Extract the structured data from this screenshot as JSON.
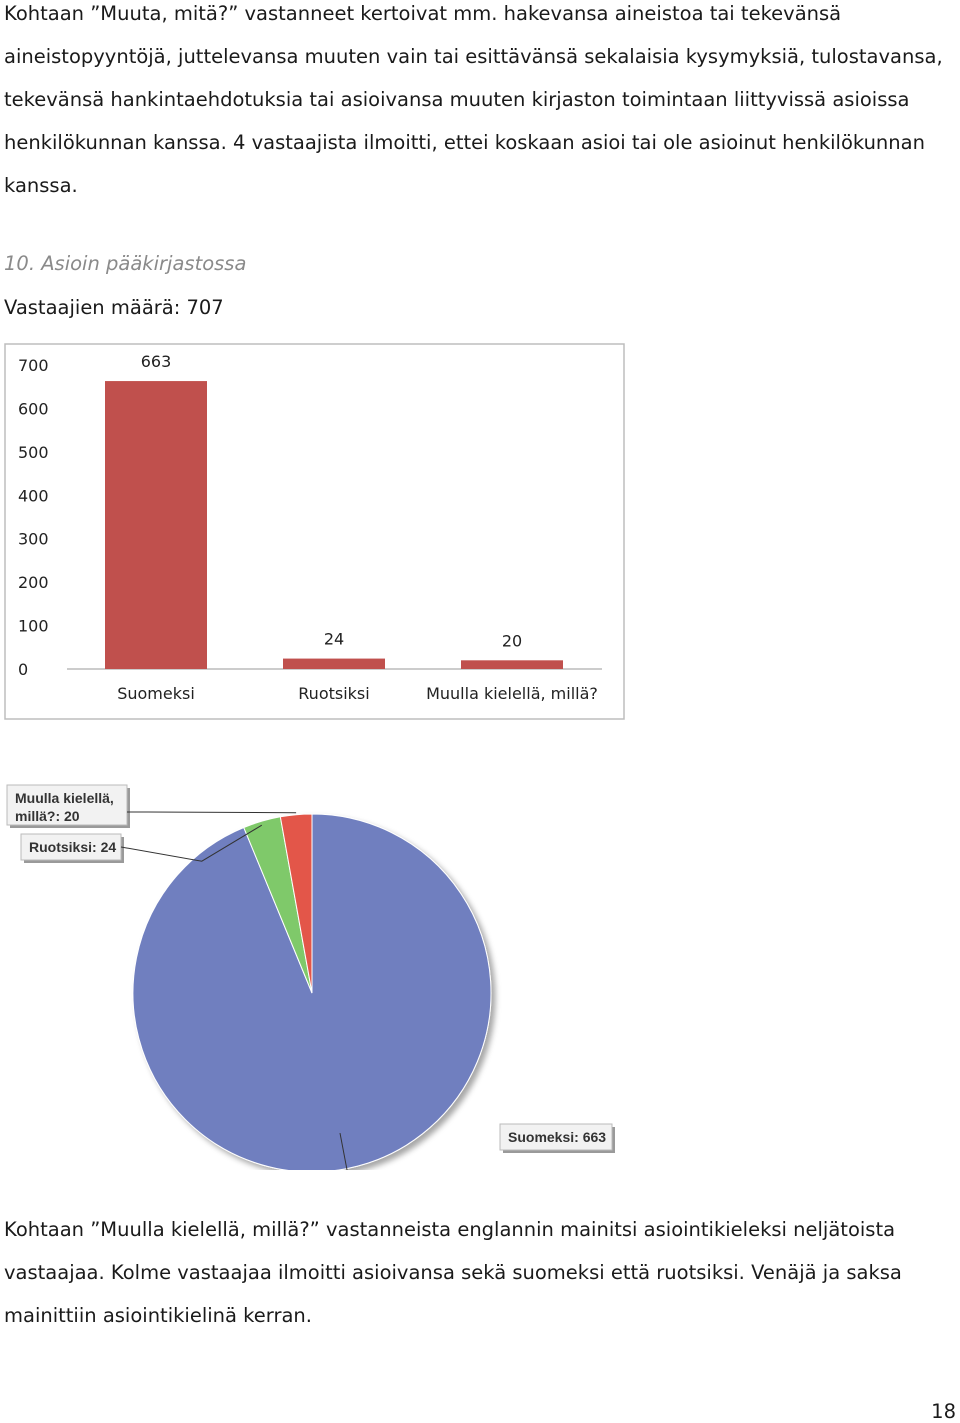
{
  "intro_paragraph": "Kohtaan ”Muuta, mitä?” vastanneet kertoivat mm. hakevansa aineistoa tai tekevänsä aineistopyyntöjä, juttelevansa muuten vain tai esittävänsä sekalaisia kysymyksiä, tulostavansa, tekevänsä hankintaehdotuksia tai asioivansa muuten kirjaston toimintaan liittyvissä asioissa henkilökunnan kanssa. 4 vastaajista ilmoitti, ettei koskaan asioi tai ole asioinut henkilökunnan kanssa.",
  "question": {
    "title": "10. Asioin pääkirjastossa",
    "respondents": "Vastaajien määrä: 707"
  },
  "chart_data": [
    {
      "type": "bar",
      "categories": [
        "Suomeksi",
        "Ruotsiksi",
        "Muulla kielellä, millä?"
      ],
      "values": [
        663,
        24,
        20
      ],
      "ylim": [
        0,
        700
      ],
      "yticks": [
        0,
        100,
        200,
        300,
        400,
        500,
        600,
        700
      ],
      "grid": false,
      "colors": {
        "bar": "#c0504d"
      }
    },
    {
      "type": "pie",
      "slices": [
        {
          "label": "Suomeksi: 663",
          "value": 663,
          "color": "#6f7fbf"
        },
        {
          "label": "Ruotsiksi: 24",
          "value": 24,
          "color": "#7fc96a"
        },
        {
          "label": "Muulla kielellä, millä?: 20",
          "value": 20,
          "color": "#e3574a"
        }
      ]
    }
  ],
  "closing_paragraph": "Kohtaan ”Muulla kielellä, millä?” vastanneista englannin mainitsi asiointikieleksi neljätoista vastaajaa. Kolme vastaajaa ilmoitti asioivansa sekä suomeksi että ruotsiksi. Venäjä ja saksa mainittiin asiointikielinä kerran.",
  "page_number": "18"
}
